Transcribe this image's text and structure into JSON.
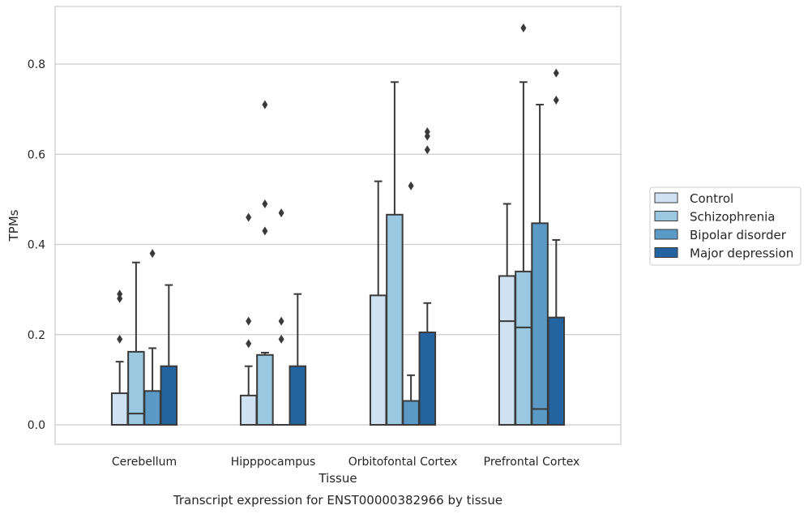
{
  "chart_data": {
    "type": "box",
    "title": "",
    "caption": "Transcript expression for ENST00000382966 by tissue",
    "xlabel": "Tissue",
    "ylabel": "TPMs",
    "ylim": [
      -0.042,
      0.93
    ],
    "yticks": [
      0.0,
      0.2,
      0.4,
      0.6,
      0.8
    ],
    "ytick_labels": [
      "0.0",
      "0.2",
      "0.4",
      "0.6",
      "0.8"
    ],
    "grid": "horizontal",
    "legend_position": "right",
    "categories": [
      "Cerebellum",
      "Hipppocampus",
      "Orbitofontal Cortex",
      "Prefrontal Cortex"
    ],
    "series": [
      {
        "name": "Control",
        "color": "#d0e1f2",
        "boxes": [
          {
            "min": 0,
            "q1": 0,
            "median": 0,
            "q3": 0.07,
            "max": 0.14,
            "outliers": [
              0.19,
              0.28,
              0.29
            ]
          },
          {
            "min": 0,
            "q1": 0,
            "median": 0,
            "q3": 0.065,
            "max": 0.13,
            "outliers": [
              0.18,
              0.23,
              0.46
            ]
          },
          {
            "min": 0,
            "q1": 0,
            "median": 0,
            "q3": 0.287,
            "max": 0.54,
            "outliers": []
          },
          {
            "min": 0,
            "q1": 0,
            "median": 0.23,
            "q3": 0.33,
            "max": 0.49,
            "outliers": []
          }
        ]
      },
      {
        "name": "Schizophrenia",
        "color": "#9ac8e0",
        "boxes": [
          {
            "min": 0,
            "q1": 0,
            "median": 0.025,
            "q3": 0.162,
            "max": 0.36,
            "outliers": []
          },
          {
            "min": 0,
            "q1": 0,
            "median": 0,
            "q3": 0.155,
            "max": 0.16,
            "outliers": [
              0.43,
              0.49,
              0.71
            ]
          },
          {
            "min": 0,
            "q1": 0,
            "median": 0,
            "q3": 0.466,
            "max": 0.76,
            "outliers": []
          },
          {
            "min": 0,
            "q1": 0,
            "median": 0.216,
            "q3": 0.34,
            "max": 0.76,
            "outliers": [
              0.88
            ]
          }
        ]
      },
      {
        "name": "Bipolar disorder",
        "color": "#5b9ac6",
        "boxes": [
          {
            "min": 0,
            "q1": 0,
            "median": 0,
            "q3": 0.075,
            "max": 0.17,
            "outliers": [
              0.38
            ]
          },
          {
            "min": 0,
            "q1": 0,
            "median": 0,
            "q3": 0,
            "max": 0,
            "outliers": [
              0.19,
              0.23,
              0.47
            ]
          },
          {
            "min": 0,
            "q1": 0,
            "median": 0,
            "q3": 0.053,
            "max": 0.11,
            "outliers": [
              0.53
            ]
          },
          {
            "min": 0,
            "q1": 0,
            "median": 0.035,
            "q3": 0.447,
            "max": 0.71,
            "outliers": []
          }
        ]
      },
      {
        "name": "Major depression",
        "color": "#2363a0",
        "boxes": [
          {
            "min": 0,
            "q1": 0,
            "median": 0,
            "q3": 0.13,
            "max": 0.31,
            "outliers": []
          },
          {
            "min": 0,
            "q1": 0,
            "median": 0,
            "q3": 0.13,
            "max": 0.29,
            "outliers": []
          },
          {
            "min": 0,
            "q1": 0,
            "median": 0,
            "q3": 0.205,
            "max": 0.27,
            "outliers": [
              0.61,
              0.64,
              0.65
            ]
          },
          {
            "min": 0,
            "q1": 0,
            "median": 0,
            "q3": 0.238,
            "max": 0.41,
            "outliers": [
              0.72,
              0.78
            ]
          }
        ]
      }
    ]
  }
}
